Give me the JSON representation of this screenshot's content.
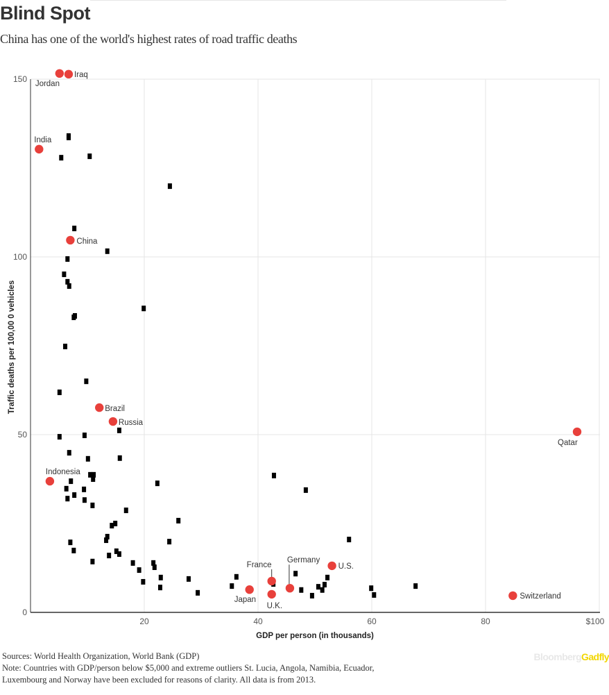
{
  "title": "Blind Spot",
  "subtitle": "China has one of the world's highest rates of road traffic deaths",
  "chart_data": {
    "type": "scatter",
    "xlabel": "GDP per person (in thousands)",
    "ylabel": "Traffic deaths per 100,00 0 vehicles",
    "xlim": [
      0,
      100
    ],
    "ylim": [
      0,
      150
    ],
    "x_ticks": [
      {
        "v": 20,
        "label": "20"
      },
      {
        "v": 40,
        "label": "40"
      },
      {
        "v": 60,
        "label": "60"
      },
      {
        "v": 80,
        "label": "80"
      },
      {
        "v": 100,
        "label": "$100"
      }
    ],
    "y_ticks": [
      {
        "v": 0,
        "label": "0"
      },
      {
        "v": 50,
        "label": "50"
      },
      {
        "v": 100,
        "label": "100"
      },
      {
        "v": 150,
        "label": "150"
      }
    ],
    "grid": true,
    "colors": {
      "highlight": "#e8403b",
      "other": "#000000",
      "grid": "#e4e4e4"
    },
    "highlighted": [
      {
        "name": "Jordan",
        "x": 5.1,
        "y": 151.6
      },
      {
        "name": "Iraq",
        "x": 6.7,
        "y": 151.4
      },
      {
        "name": "India",
        "x": 1.5,
        "y": 130.3
      },
      {
        "name": "China",
        "x": 7.0,
        "y": 104.7
      },
      {
        "name": "Brazil",
        "x": 12.1,
        "y": 57.6
      },
      {
        "name": "Russia",
        "x": 14.5,
        "y": 53.7
      },
      {
        "name": "Indonesia",
        "x": 3.4,
        "y": 36.9
      },
      {
        "name": "Qatar",
        "x": 96.1,
        "y": 50.8
      },
      {
        "name": "France",
        "x": 42.4,
        "y": 8.8
      },
      {
        "name": "Germany",
        "x": 45.6,
        "y": 6.8
      },
      {
        "name": "U.S.",
        "x": 53.0,
        "y": 13.1
      },
      {
        "name": "Japan",
        "x": 38.5,
        "y": 6.4
      },
      {
        "name": "U.K.",
        "x": 42.4,
        "y": 5.1
      },
      {
        "name": "Switzerland",
        "x": 84.8,
        "y": 4.7
      }
    ],
    "others": [
      [
        6.7,
        134.0
      ],
      [
        6.7,
        133.6
      ],
      [
        5.4,
        127.9
      ],
      [
        10.4,
        128.3
      ],
      [
        24.5,
        119.9
      ],
      [
        7.7,
        108.0
      ],
      [
        13.5,
        101.6
      ],
      [
        6.5,
        99.4
      ],
      [
        5.9,
        95.1
      ],
      [
        6.5,
        93.0
      ],
      [
        6.8,
        91.8
      ],
      [
        19.9,
        85.5
      ],
      [
        7.8,
        83.4
      ],
      [
        7.6,
        83.0
      ],
      [
        6.1,
        74.8
      ],
      [
        9.8,
        65.0
      ],
      [
        5.1,
        61.9
      ],
      [
        15.6,
        51.2
      ],
      [
        5.1,
        49.4
      ],
      [
        9.5,
        49.8
      ],
      [
        6.8,
        44.9
      ],
      [
        10.1,
        43.2
      ],
      [
        15.7,
        43.4
      ],
      [
        10.5,
        38.7
      ],
      [
        11.1,
        38.7
      ],
      [
        11.0,
        37.5
      ],
      [
        7.1,
        36.9
      ],
      [
        22.3,
        36.3
      ],
      [
        42.8,
        38.5
      ],
      [
        48.4,
        34.4
      ],
      [
        6.3,
        34.8
      ],
      [
        9.4,
        34.6
      ],
      [
        7.7,
        33.0
      ],
      [
        6.5,
        32.0
      ],
      [
        9.5,
        31.6
      ],
      [
        10.9,
        30.1
      ],
      [
        16.8,
        28.7
      ],
      [
        26.0,
        25.8
      ],
      [
        14.9,
        25.0
      ],
      [
        14.3,
        24.4
      ],
      [
        13.5,
        21.3
      ],
      [
        13.3,
        20.3
      ],
      [
        7.0,
        19.7
      ],
      [
        24.4,
        19.9
      ],
      [
        56.0,
        20.5
      ],
      [
        7.6,
        17.4
      ],
      [
        13.8,
        16.0
      ],
      [
        15.1,
        17.2
      ],
      [
        15.6,
        16.4
      ],
      [
        10.9,
        14.3
      ],
      [
        18.0,
        13.9
      ],
      [
        21.6,
        13.9
      ],
      [
        21.8,
        12.7
      ],
      [
        19.1,
        11.9
      ],
      [
        46.6,
        10.9
      ],
      [
        22.9,
        9.8
      ],
      [
        19.8,
        8.6
      ],
      [
        27.8,
        9.4
      ],
      [
        36.2,
        10.0
      ],
      [
        52.2,
        9.8
      ],
      [
        35.4,
        7.4
      ],
      [
        42.7,
        8.0
      ],
      [
        51.7,
        7.8
      ],
      [
        22.8,
        7.0
      ],
      [
        47.6,
        6.3
      ],
      [
        50.6,
        7.2
      ],
      [
        59.9,
        6.8
      ],
      [
        67.7,
        7.4
      ],
      [
        29.4,
        5.5
      ],
      [
        51.3,
        6.3
      ],
      [
        49.5,
        4.7
      ],
      [
        60.4,
        4.9
      ]
    ]
  },
  "footer": {
    "sources": "Sources: World Health Organization, World Bank (GDP)",
    "note": "Note: Countries with GDP/person below $5,000 and extreme outliers St. Lucia, Angola, Namibia, Ecuador, Luxembourg and Norway have been excluded for reasons of clarity. All data is from 2013.",
    "logo_a": "Bloomberg",
    "logo_b": "Gadfly"
  }
}
